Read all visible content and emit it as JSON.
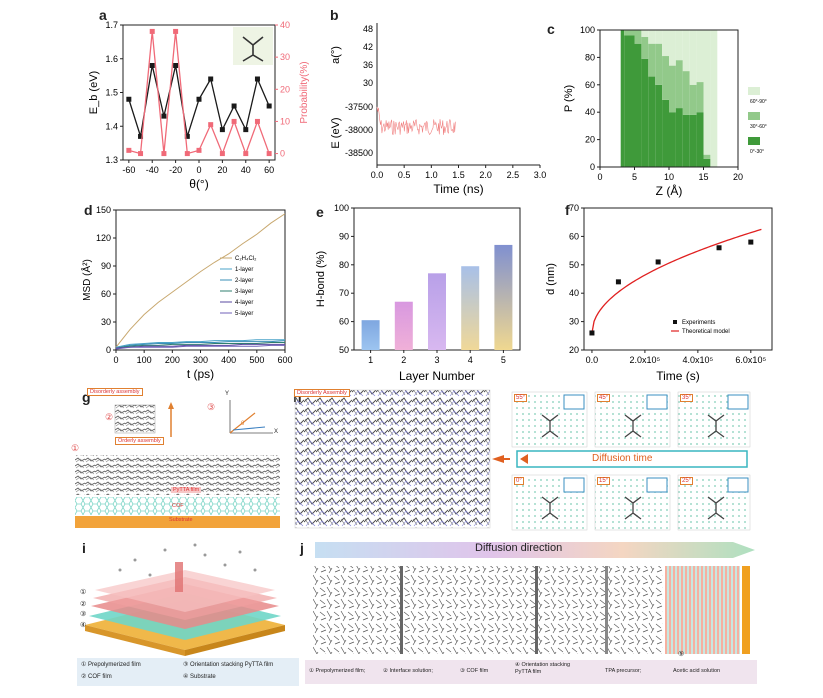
{
  "panel_labels": [
    "a",
    "b",
    "c",
    "d",
    "e",
    "f",
    "g",
    "h",
    "i",
    "j"
  ],
  "chart_data": [
    {
      "id": "a",
      "type": "line",
      "xlabel": "θ(°)",
      "ylabel": "E_b (eV)",
      "y2label": "Probability(%)",
      "x": [
        -60,
        -50,
        -40,
        -30,
        -20,
        -10,
        0,
        10,
        20,
        30,
        40,
        50,
        60
      ],
      "xticks": [
        "-60",
        "-40",
        "-20",
        "0",
        "20",
        "40",
        "60"
      ],
      "yticks": [
        "1.3",
        "1.4",
        "1.5",
        "1.6",
        "1.7"
      ],
      "y2ticks": [
        "0",
        "10",
        "20",
        "30",
        "40"
      ],
      "ylim": [
        1.3,
        1.7
      ],
      "y2lim": [
        -2,
        40
      ],
      "series": [
        {
          "color": "#1a1a1a",
          "axis": "left",
          "values": [
            1.48,
            1.37,
            1.58,
            1.43,
            1.58,
            1.37,
            1.48,
            1.54,
            1.39,
            1.46,
            1.39,
            1.54,
            1.46
          ]
        },
        {
          "color": "#f06a78",
          "axis": "right",
          "values": [
            1,
            0,
            38,
            0,
            38,
            0,
            1,
            9,
            0,
            10,
            0,
            10,
            0
          ]
        }
      ]
    },
    {
      "id": "b",
      "type": "line",
      "xlabel": "Time (ns)",
      "ylabel_top": "a(°)",
      "ylabel_bottom": "E (eV)",
      "xticks": [
        "0.0",
        "0.5",
        "1.0",
        "1.5",
        "2.0",
        "2.5",
        "3.0"
      ],
      "yticks_top": [
        "48",
        "42",
        "36",
        "30"
      ],
      "yticks_bottom": [
        "-37500",
        "-38000",
        "-38500"
      ],
      "color": "#f08080",
      "x_range": [
        0,
        1.45
      ]
    },
    {
      "id": "c",
      "type": "bar",
      "xlabel": "Z (Å)",
      "ylabel": "P (%)",
      "xticks": [
        "0",
        "5",
        "10",
        "15",
        "20"
      ],
      "yticks": [
        "0",
        "20",
        "40",
        "60",
        "80",
        "100"
      ],
      "xlim": [
        0,
        20
      ],
      "ylim": [
        0,
        100
      ],
      "x": [
        2.5,
        4.5,
        5.5,
        6.5,
        7.5,
        8.5,
        9.5,
        10.5,
        11.5,
        12.5,
        13.5,
        14.5,
        15.5,
        16.5
      ],
      "series": [
        {
          "name": "0°-30°",
          "color": "#3f9a3a",
          "values": [
            100,
            96,
            90,
            79,
            66,
            60,
            49,
            40,
            43,
            38,
            38,
            40,
            6,
            0
          ]
        },
        {
          "name": "30°-60°",
          "color": "#92c98a",
          "values": [
            0,
            4,
            10,
            16,
            24,
            30,
            32,
            34,
            35,
            32,
            22,
            22,
            3,
            0
          ]
        },
        {
          "name": "60°-90°",
          "color": "#dcefd5",
          "values": [
            0,
            0,
            0,
            5,
            10,
            10,
            19,
            26,
            22,
            30,
            40,
            38,
            91,
            100
          ]
        }
      ],
      "legend": [
        "60°-90°",
        "30°-60°",
        "0°-30°"
      ]
    },
    {
      "id": "d",
      "type": "line",
      "xlabel": "t (ps)",
      "ylabel": "MSD (Å²)",
      "xticks": [
        "0",
        "100",
        "200",
        "300",
        "400",
        "500",
        "600"
      ],
      "yticks": [
        "0",
        "30",
        "60",
        "90",
        "120",
        "150"
      ],
      "xlim": [
        0,
        600
      ],
      "ylim": [
        0,
        150
      ],
      "x": [
        0,
        50,
        100,
        150,
        200,
        250,
        300,
        350,
        400,
        450,
        500,
        550,
        600
      ],
      "series": [
        {
          "name": "C₂H₄Cl₂",
          "color": "#c8a86f",
          "values": [
            3,
            22,
            38,
            51,
            62,
            73,
            84,
            94,
            103,
            114,
            124,
            136,
            146
          ]
        },
        {
          "name": "1-layer",
          "color": "#4aa3c8",
          "values": [
            3,
            6,
            7,
            8,
            8,
            9,
            9,
            10,
            10,
            10,
            11,
            11,
            11
          ]
        },
        {
          "name": "2-layer",
          "color": "#3a8fb7",
          "values": [
            2,
            5,
            6,
            7,
            7,
            8,
            8,
            8,
            9,
            9,
            9,
            9,
            10
          ]
        },
        {
          "name": "3-layer",
          "color": "#2f7f6f",
          "values": [
            2,
            4,
            5,
            5,
            6,
            6,
            6,
            7,
            7,
            7,
            7,
            8,
            8
          ]
        },
        {
          "name": "4-layer",
          "color": "#5a4aa0",
          "values": [
            2,
            3,
            4,
            4,
            4,
            5,
            5,
            5,
            5,
            6,
            6,
            6,
            6
          ]
        },
        {
          "name": "5-layer",
          "color": "#7060b8",
          "values": [
            1,
            3,
            3,
            3,
            3,
            4,
            4,
            4,
            4,
            4,
            4,
            5,
            5
          ]
        }
      ]
    },
    {
      "id": "e",
      "type": "bar",
      "xlabel": "Layer Number",
      "ylabel": "H-bond (%)",
      "categories": [
        "1",
        "2",
        "3",
        "4",
        "5"
      ],
      "values": [
        60.5,
        67,
        77,
        79.5,
        87
      ],
      "yticks": [
        "50",
        "60",
        "70",
        "80",
        "90",
        "100"
      ],
      "ylim": [
        50,
        100
      ],
      "colors": [
        "#8fb7e8",
        "#e8a7d8",
        "#c9a7e8",
        "#a6b8e8",
        "#9aa4d8"
      ]
    },
    {
      "id": "f",
      "type": "scatter",
      "xlabel": "Time (s)",
      "ylabel": "d (nm)",
      "xticks": [
        "0.0",
        "2.0x10⁵",
        "4.0x10⁵",
        "6.0x10⁵"
      ],
      "yticks": [
        "20",
        "30",
        "40",
        "50",
        "60",
        "70"
      ],
      "xlim": [
        -30000,
        680000
      ],
      "ylim": [
        20,
        70
      ],
      "x": [
        0,
        100000,
        250000,
        480000,
        600000
      ],
      "values": [
        26,
        44,
        51,
        56,
        58
      ],
      "model_color": "#e02020",
      "legend": [
        "Experiments",
        "Theoretical model"
      ]
    }
  ],
  "g": {
    "disorderly": "Disorderly assembly",
    "orderly": "Orderly assembly",
    "film": "PyTTA film",
    "cof": "COF",
    "substrate": "Substrate",
    "circle1": "①",
    "circle2": "②",
    "circle3": "③",
    "axis_y": "Y",
    "axis_x": "X",
    "theta": "θ"
  },
  "h": {
    "disorderly": "Disorderly Assembly",
    "diffusion_time": "Diffusion time",
    "angles_top": [
      "55°",
      "45°",
      "35°"
    ],
    "angles_bottom": [
      "0°",
      "15°",
      "25°"
    ]
  },
  "i": {
    "legend": [
      "① Prepolymerized film",
      "③ Orientation stacking PyTTA film",
      "② COF film",
      "④ Substrate"
    ],
    "numbers": [
      "①",
      "②",
      "③",
      "④"
    ]
  },
  "j": {
    "title": "Diffusion direction",
    "legend": [
      "① Prepolymerized film;",
      "② Interface solution;",
      "③ COF film",
      "④ Orientation stacking PyTTA film",
      "TPA precursor;",
      "Acetic acid solution"
    ],
    "circle5": "⑤"
  }
}
